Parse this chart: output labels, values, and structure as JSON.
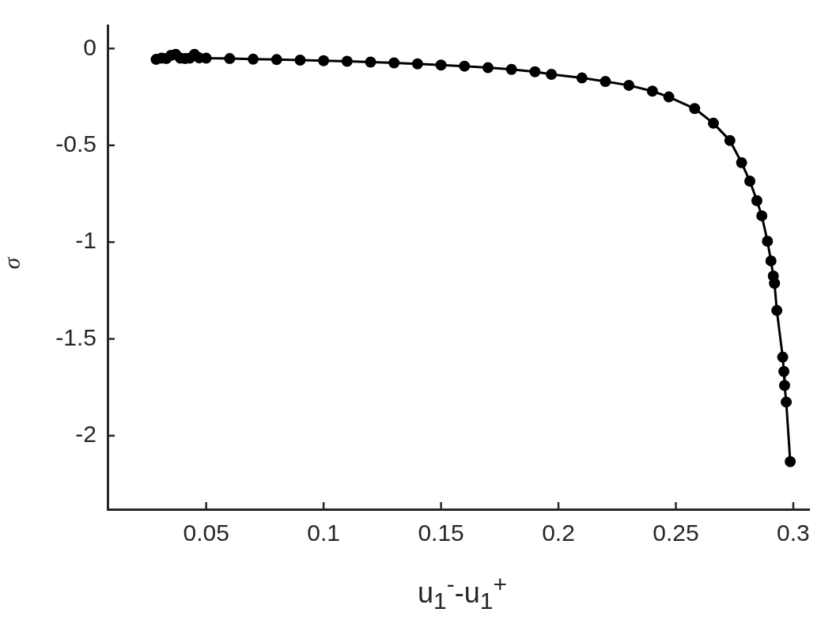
{
  "chart_data": {
    "type": "line",
    "xlabel": "u$_{1}$$^{-}$-u$_{1}$$^{+}$",
    "ylabel": "σ",
    "xlim": [
      0.008,
      0.307
    ],
    "xticks": [
      0.05,
      0.1,
      0.15,
      0.2,
      0.25,
      0.3
    ],
    "ylim": [
      -2.38,
      0.12
    ],
    "yticks": [
      {
        "value": -2,
        "label": "-2"
      },
      {
        "value": -1.5,
        "label": "-1.5"
      },
      {
        "value": -1,
        "label": "-1"
      },
      {
        "value": -0.5,
        "label": "-0.5"
      },
      {
        "value": 0,
        "label": "0"
      }
    ],
    "grid": false,
    "legend": false,
    "marker": "circle",
    "line_style": "solid",
    "series": [
      {
        "color": "#000000",
        "x": [
          0.0287,
          0.031,
          0.033,
          0.035,
          0.037,
          0.039,
          0.041,
          0.043,
          0.045,
          0.047,
          0.05,
          0.06,
          0.07,
          0.08,
          0.09,
          0.1,
          0.11,
          0.12,
          0.13,
          0.14,
          0.15,
          0.16,
          0.17,
          0.18,
          0.19,
          0.197,
          0.21,
          0.22,
          0.23,
          0.24,
          0.247,
          0.258,
          0.266,
          0.273,
          0.278,
          0.2815,
          0.2845,
          0.2866,
          0.289,
          0.2905,
          0.2915,
          0.292,
          0.293,
          0.2955,
          0.296,
          0.2963,
          0.297,
          0.2987
        ],
        "values": [
          -0.056,
          -0.05,
          -0.052,
          -0.035,
          -0.03,
          -0.05,
          -0.052,
          -0.05,
          -0.03,
          -0.048,
          -0.05,
          -0.052,
          -0.055,
          -0.057,
          -0.06,
          -0.063,
          -0.066,
          -0.07,
          -0.074,
          -0.079,
          -0.085,
          -0.091,
          -0.099,
          -0.108,
          -0.12,
          -0.133,
          -0.152,
          -0.17,
          -0.19,
          -0.22,
          -0.25,
          -0.31,
          -0.386,
          -0.475,
          -0.59,
          -0.685,
          -0.786,
          -0.864,
          -0.995,
          -1.097,
          -1.175,
          -1.213,
          -1.353,
          -1.594,
          -1.668,
          -1.741,
          -1.826,
          -2.134
        ]
      }
    ]
  }
}
